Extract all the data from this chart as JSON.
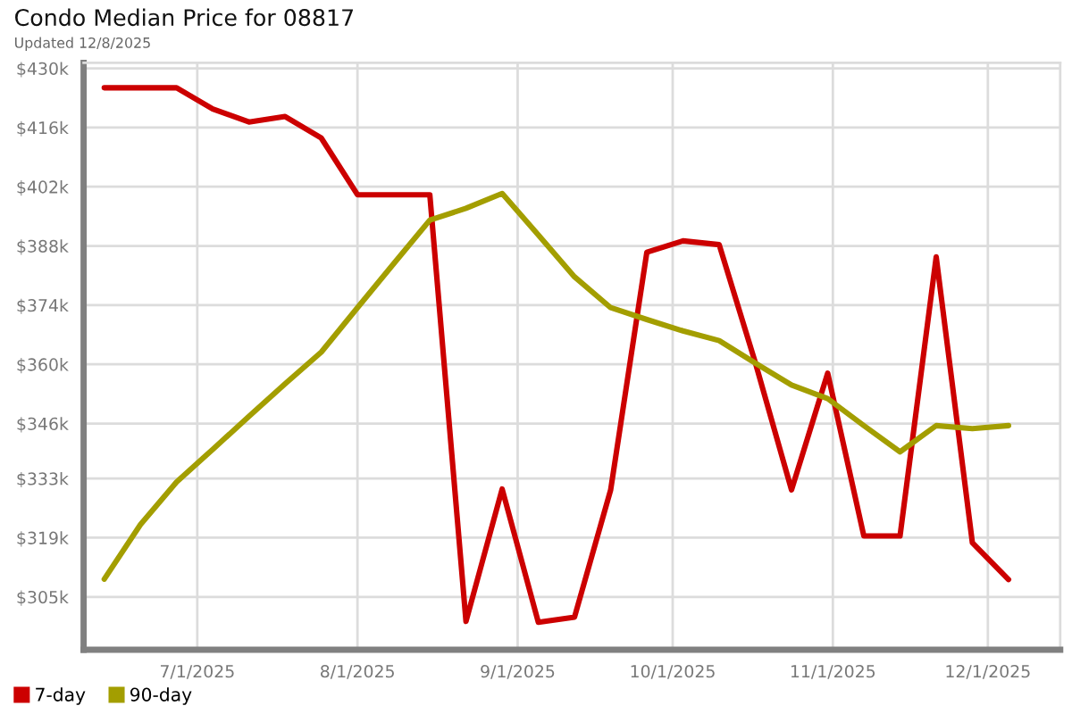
{
  "chart_data": {
    "type": "line",
    "title": "Condo Median Price for 08817",
    "subtitle": "Updated 12/8/2025",
    "x": [
      "2025-06-13",
      "2025-06-20",
      "2025-06-27",
      "2025-07-04",
      "2025-07-11",
      "2025-07-18",
      "2025-07-25",
      "2025-08-01",
      "2025-08-08",
      "2025-08-15",
      "2025-08-22",
      "2025-08-29",
      "2025-09-05",
      "2025-09-12",
      "2025-09-19",
      "2025-09-26",
      "2025-10-03",
      "2025-10-10",
      "2025-10-17",
      "2025-10-24",
      "2025-10-31",
      "2025-11-07",
      "2025-11-14",
      "2025-11-21",
      "2025-11-28",
      "2025-12-05"
    ],
    "series": [
      {
        "name": "7-day",
        "color": "#cc0000",
        "values": [
          425.4,
          425.4,
          425.4,
          420.4,
          417.3,
          418.6,
          413.5,
          400.1,
          400.1,
          400.1,
          299.2,
          330.5,
          299.0,
          300.2,
          330.3,
          386.5,
          389.2,
          388.3,
          360.4,
          330.3,
          357.9,
          319.4,
          319.4,
          385.4,
          317.8,
          309.1
        ]
      },
      {
        "name": "90-day",
        "color": "#a39e00",
        "values": [
          309.2,
          322.1,
          332.2,
          339.9,
          347.7,
          355.4,
          362.9,
          373.4,
          383.8,
          394.1,
          396.9,
          400.4,
          390.6,
          380.7,
          373.4,
          370.6,
          367.9,
          365.6,
          360.3,
          355.1,
          351.9,
          345.5,
          339.3,
          345.5,
          344.8,
          345.5
        ]
      }
    ],
    "xlim": [
      "2025-06-09",
      "2025-12-15"
    ],
    "xticks": [
      {
        "value": "2025-07-01",
        "label": "7/1/2025"
      },
      {
        "value": "2025-08-01",
        "label": "8/1/2025"
      },
      {
        "value": "2025-09-01",
        "label": "9/1/2025"
      },
      {
        "value": "2025-10-01",
        "label": "10/1/2025"
      },
      {
        "value": "2025-11-01",
        "label": "11/1/2025"
      },
      {
        "value": "2025-12-01",
        "label": "12/1/2025"
      }
    ],
    "ylim": [
      292.5,
      431.3
    ],
    "yticks": [
      {
        "value": 305,
        "label": "$305k"
      },
      {
        "value": 319,
        "label": "$319k"
      },
      {
        "value": 333,
        "label": "$333k"
      },
      {
        "value": 346,
        "label": "$346k"
      },
      {
        "value": 360,
        "label": "$360k"
      },
      {
        "value": 374,
        "label": "$374k"
      },
      {
        "value": 388,
        "label": "$388k"
      },
      {
        "value": 402,
        "label": "$402k"
      },
      {
        "value": 416,
        "label": "$416k"
      },
      {
        "value": 430,
        "label": "$430k"
      }
    ],
    "grid": true,
    "legend": "bottom left",
    "marker": "none",
    "line_style": "solid"
  }
}
